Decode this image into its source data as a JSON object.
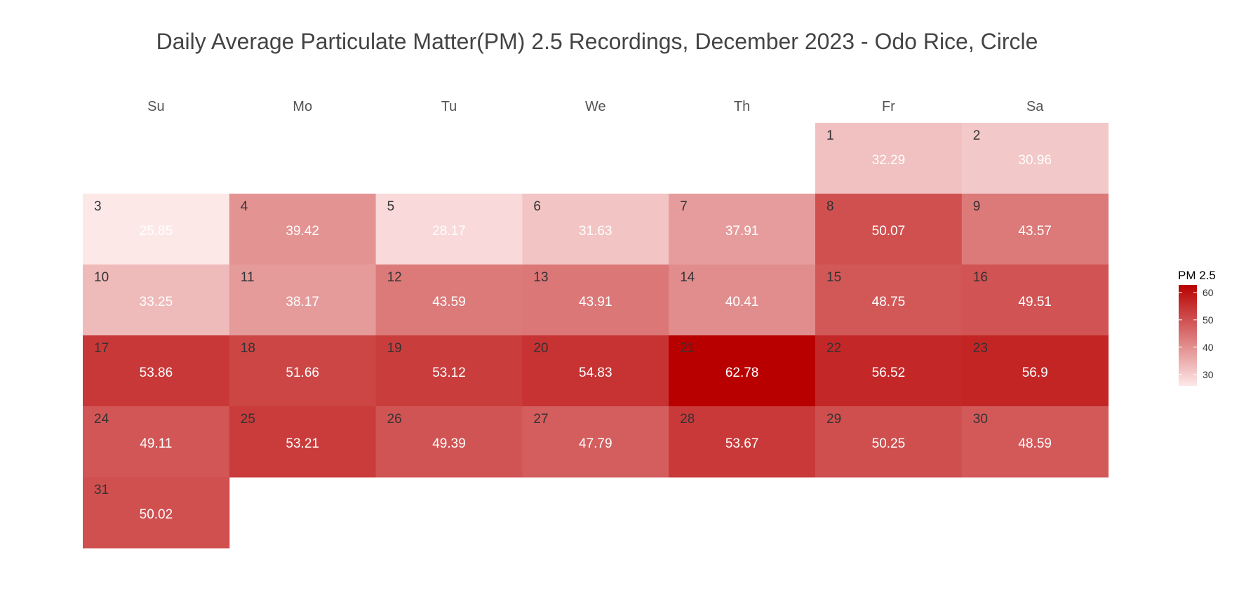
{
  "chart_data": {
    "type": "heatmap",
    "title": "Daily Average Particulate Matter(PM) 2.5 Recordings, December 2023 - Odo Rice, Circle",
    "weekdays": [
      "Su",
      "Mo",
      "Tu",
      "We",
      "Th",
      "Fr",
      "Sa"
    ],
    "first_weekday_index": 5,
    "days": [
      1,
      2,
      3,
      4,
      5,
      6,
      7,
      8,
      9,
      10,
      11,
      12,
      13,
      14,
      15,
      16,
      17,
      18,
      19,
      20,
      21,
      22,
      23,
      24,
      25,
      26,
      27,
      28,
      29,
      30,
      31
    ],
    "values": [
      32.29,
      30.96,
      25.85,
      39.42,
      28.17,
      31.63,
      37.91,
      50.07,
      43.57,
      33.25,
      38.17,
      43.59,
      43.91,
      40.41,
      48.75,
      49.51,
      53.86,
      51.66,
      53.12,
      54.83,
      62.78,
      56.52,
      56.9,
      49.11,
      53.21,
      49.39,
      47.79,
      53.67,
      50.25,
      48.59,
      50.02
    ],
    "legend": {
      "title": "PM 2.5",
      "ticks": [
        30,
        40,
        50,
        60
      ],
      "range": [
        25.85,
        62.78
      ],
      "low_color": "#fde8e8",
      "high_color": "#b80000"
    }
  },
  "colors": {
    "title_text": "#444444",
    "day_number_text": "#333333",
    "value_text": "#ffffff"
  }
}
